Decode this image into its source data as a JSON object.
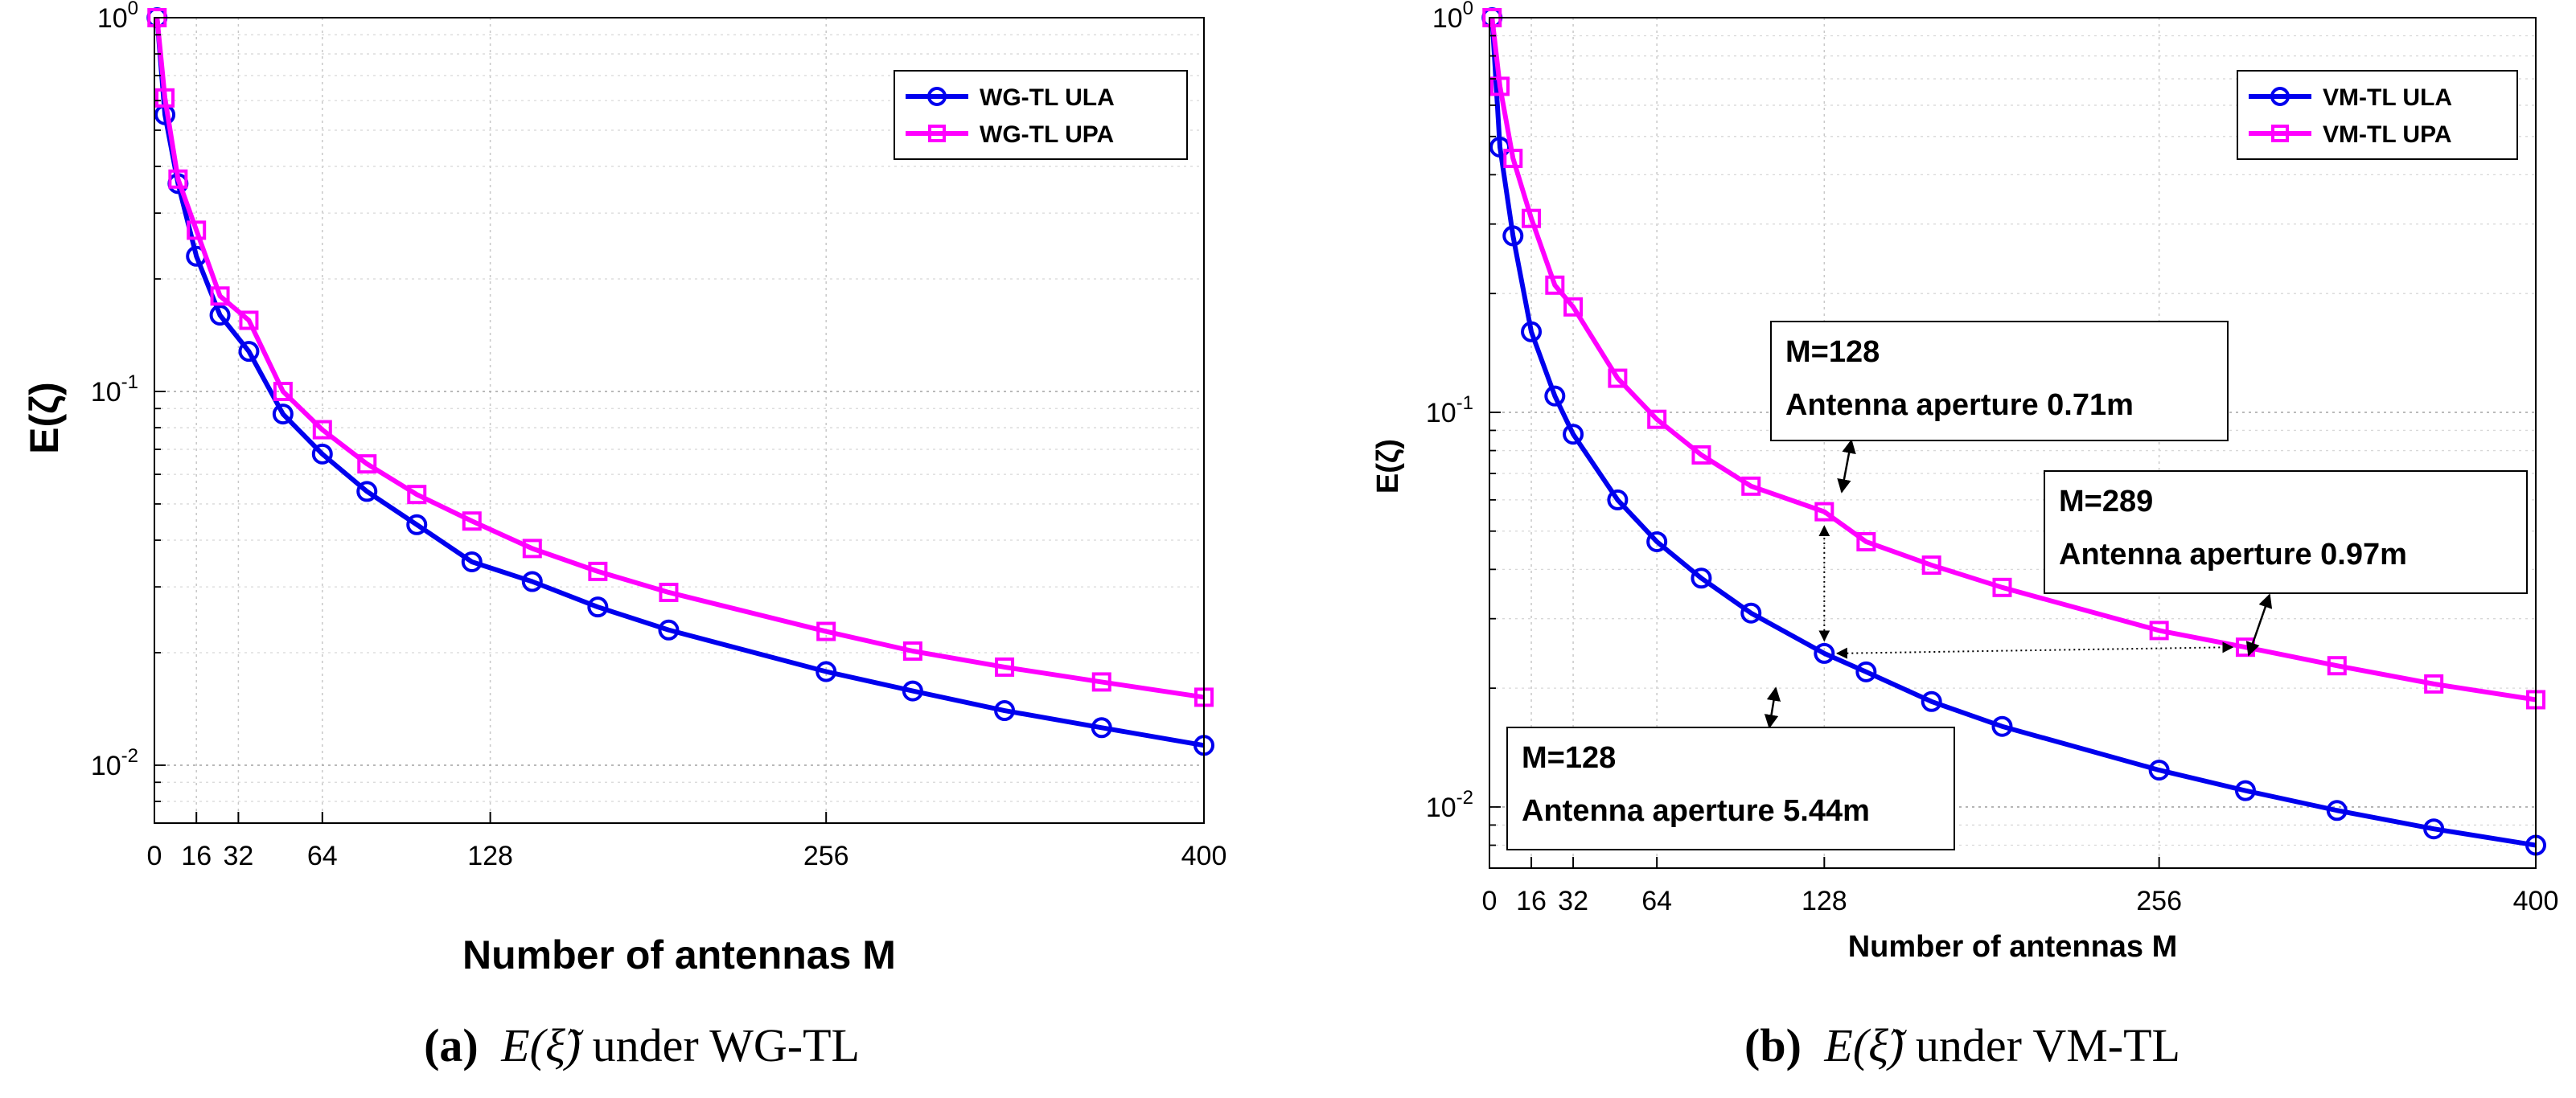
{
  "chart_data": [
    {
      "type": "line",
      "panel": "a",
      "xlabel": "Number of antennas M",
      "ylabel": "E(ζ)",
      "yscale": "log",
      "xlim": [
        0,
        400
      ],
      "ylim": [
        0.007,
        1
      ],
      "xticks": [
        0,
        16,
        32,
        64,
        128,
        256,
        400
      ],
      "yticks": [
        {
          "value": 1,
          "base": "10",
          "exp": "0"
        },
        {
          "value": 0.1,
          "base": "10",
          "exp": "-1"
        },
        {
          "value": 0.01,
          "base": "10",
          "exp": "-2"
        }
      ],
      "grid": true,
      "legend_position": "top-right",
      "series": [
        {
          "name": "WG-TL ULA",
          "color": "#0000ee",
          "marker": "circle",
          "x": [
            1,
            4,
            9,
            16,
            25,
            36,
            49,
            64,
            81,
            100,
            121,
            144,
            169,
            196,
            256,
            289,
            324,
            361,
            400
          ],
          "y": [
            1.0,
            0.55,
            0.36,
            0.23,
            0.16,
            0.128,
            0.087,
            0.068,
            0.054,
            0.044,
            0.035,
            0.031,
            0.0265,
            0.023,
            0.0178,
            0.0158,
            0.014,
            0.0126,
            0.0113
          ]
        },
        {
          "name": "WG-TL UPA",
          "color": "#ff00ff",
          "marker": "square",
          "x": [
            1,
            4,
            9,
            16,
            25,
            36,
            49,
            64,
            81,
            100,
            121,
            144,
            169,
            196,
            256,
            289,
            324,
            361,
            400
          ],
          "y": [
            1.0,
            0.61,
            0.37,
            0.27,
            0.18,
            0.155,
            0.1,
            0.079,
            0.064,
            0.053,
            0.045,
            0.038,
            0.033,
            0.029,
            0.0228,
            0.0202,
            0.0183,
            0.0167,
            0.0152
          ]
        }
      ]
    },
    {
      "type": "line",
      "panel": "b",
      "xlabel": "Number of antennas M",
      "ylabel": "E(ζ)",
      "yscale": "log",
      "xlim": [
        0,
        400
      ],
      "ylim": [
        0.007,
        1
      ],
      "xticks": [
        0,
        16,
        32,
        64,
        128,
        256,
        400
      ],
      "yticks": [
        {
          "value": 1,
          "base": "10",
          "exp": "0"
        },
        {
          "value": 0.1,
          "base": "10",
          "exp": "-1"
        },
        {
          "value": 0.01,
          "base": "10",
          "exp": "-2"
        }
      ],
      "grid": true,
      "legend_position": "top-right",
      "series": [
        {
          "name": "VM-TL ULA",
          "color": "#0000ee",
          "marker": "circle",
          "x": [
            1,
            4,
            9,
            16,
            25,
            32,
            49,
            64,
            81,
            100,
            128,
            144,
            169,
            196,
            256,
            289,
            324,
            361,
            400
          ],
          "y": [
            1.0,
            0.47,
            0.28,
            0.16,
            0.11,
            0.088,
            0.06,
            0.047,
            0.038,
            0.031,
            0.0245,
            0.022,
            0.0185,
            0.016,
            0.0124,
            0.011,
            0.0098,
            0.0088,
            0.008
          ]
        },
        {
          "name": "VM-TL UPA",
          "color": "#ff00ff",
          "marker": "square",
          "x": [
            1,
            4,
            9,
            16,
            25,
            32,
            49,
            64,
            81,
            100,
            128,
            144,
            169,
            196,
            256,
            289,
            324,
            361,
            400
          ],
          "y": [
            1.0,
            0.67,
            0.44,
            0.31,
            0.21,
            0.185,
            0.122,
            0.096,
            0.078,
            0.065,
            0.056,
            0.047,
            0.041,
            0.036,
            0.028,
            0.0254,
            0.0228,
            0.0205,
            0.0187
          ]
        }
      ],
      "annotations": [
        {
          "lines": [
            "M=128",
            "Antenna aperture 0.71m"
          ],
          "target_x": 128,
          "target_y": 0.056
        },
        {
          "lines": [
            "M=289",
            "Antenna aperture 0.97m"
          ],
          "target_x": 289,
          "target_y": 0.0254
        },
        {
          "lines": [
            "M=128",
            "Antenna aperture 5.44m"
          ],
          "target_x": 128,
          "target_y": 0.0245
        }
      ]
    }
  ],
  "captions": [
    {
      "label": "(a)",
      "expr": "E(ξ̃)",
      "text": " under WG-TL"
    },
    {
      "label": "(b)",
      "expr": "E(ξ̃)",
      "text": " under VM-TL"
    }
  ]
}
